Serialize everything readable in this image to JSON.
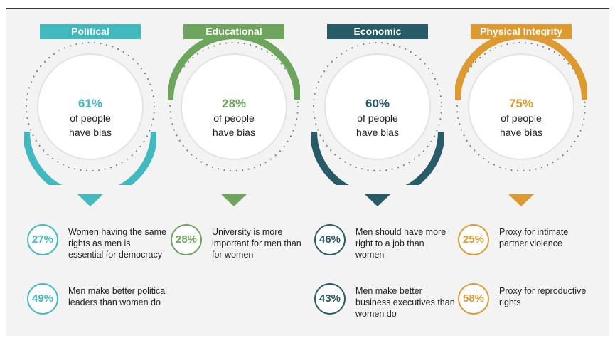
{
  "columns": [
    {
      "label": "Political",
      "color": "#41b9be",
      "percent": "61%",
      "line1": "of people",
      "line2": "have bias",
      "stats": [
        {
          "value": "27%",
          "text": "Women having the same rights as men is essential for democracy"
        },
        {
          "value": "49%",
          "text": "Men make better political leaders than women do"
        }
      ]
    },
    {
      "label": "Educational",
      "color": "#6ea55c",
      "percent": "28%",
      "line1": "of people",
      "line2": "have bias",
      "stats": [
        {
          "value": "28%",
          "text": "University is more important for men than for women"
        }
      ]
    },
    {
      "label": "Economic",
      "color": "#275b68",
      "percent": "60%",
      "line1": "of people",
      "line2": "have bias",
      "stats": [
        {
          "value": "46%",
          "text": "Men should have more right to a job than women"
        },
        {
          "value": "43%",
          "text": "Men make better business executives than women do"
        }
      ]
    },
    {
      "label": "Physical Integrity",
      "color": "#dc9a31",
      "percent": "75%",
      "line1": "of people",
      "line2": "have bias",
      "stats": [
        {
          "value": "25%",
          "text": "Proxy for intimate partner violence"
        },
        {
          "value": "58%",
          "text": "Proxy for reproductive rights"
        }
      ]
    }
  ]
}
